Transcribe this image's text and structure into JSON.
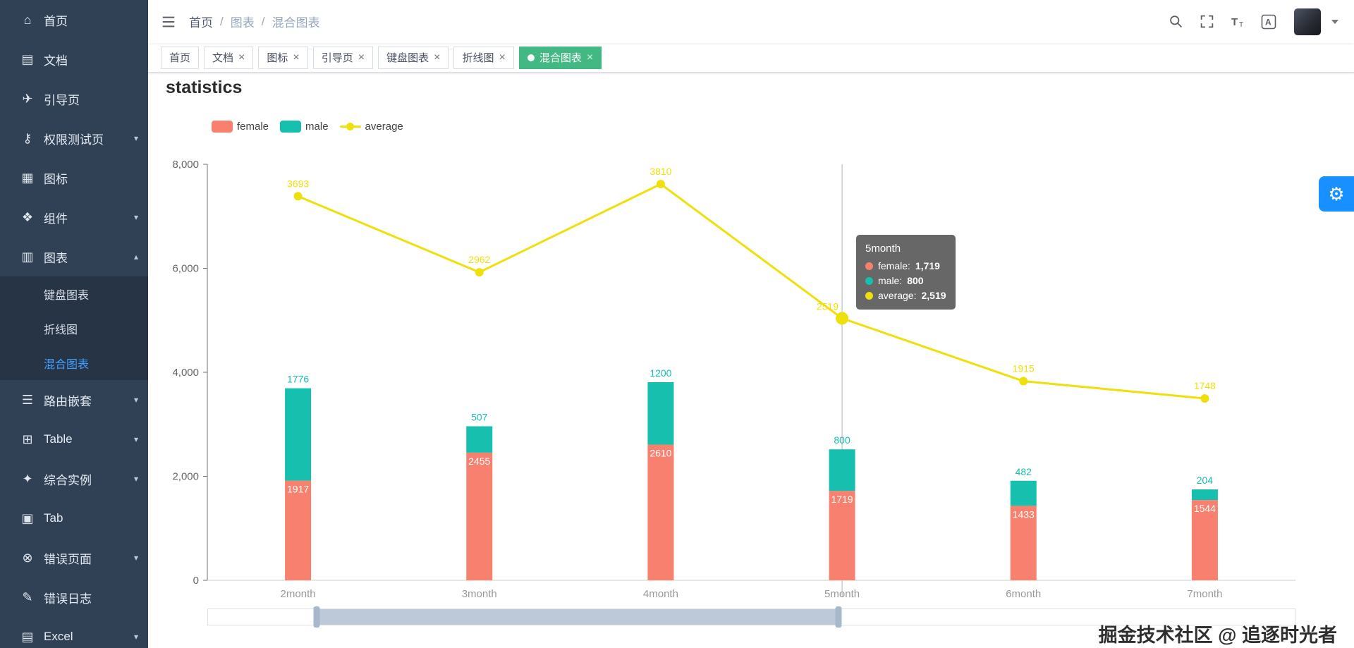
{
  "theme": {
    "sidebar_bg": "#304156",
    "submenu_bg": "#263445",
    "active_blue": "#409eff",
    "tag_green": "#42b983",
    "accent": "#1890ff"
  },
  "app": {
    "watermark": "掘金技术社区 @ 追逐时光者"
  },
  "page": {
    "title": "statistics"
  },
  "settings": {
    "glyph": "⚙",
    "icon": "gear-icon"
  },
  "sidebar": {
    "items": [
      {
        "name": "home",
        "label": "首页",
        "icon": "home-icon",
        "glyph": "⌂"
      },
      {
        "name": "docs",
        "label": "文档",
        "icon": "document-icon",
        "glyph": "▤"
      },
      {
        "name": "guide",
        "label": "引导页",
        "icon": "guide-icon",
        "glyph": "✈"
      },
      {
        "name": "permission",
        "label": "权限测试页",
        "icon": "lock-icon",
        "glyph": "⚷",
        "arrow": true
      },
      {
        "name": "icons",
        "label": "图标",
        "icon": "icons-icon",
        "glyph": "▦"
      },
      {
        "name": "components",
        "label": "组件",
        "icon": "components-icon",
        "glyph": "❖",
        "arrow": true
      },
      {
        "name": "charts",
        "label": "图表",
        "icon": "bar-chart-icon",
        "glyph": "▥",
        "arrow": true,
        "open": true,
        "children": [
          {
            "name": "keyboard-chart",
            "label": "键盘图表"
          },
          {
            "name": "line-chart",
            "label": "折线图"
          },
          {
            "name": "mixed-chart",
            "label": "混合图表",
            "active": true
          }
        ]
      },
      {
        "name": "nested-routes",
        "label": "路由嵌套",
        "icon": "list-icon",
        "glyph": "☰",
        "arrow": true
      },
      {
        "name": "table",
        "label": "Table",
        "icon": "table-icon",
        "glyph": "⊞",
        "arrow": true
      },
      {
        "name": "example",
        "label": "综合实例",
        "icon": "star-icon",
        "glyph": "✦",
        "arrow": true
      },
      {
        "name": "tab",
        "label": "Tab",
        "icon": "tab-icon",
        "glyph": "▣"
      },
      {
        "name": "error-pages",
        "label": "错误页面",
        "icon": "error-icon",
        "glyph": "⊗",
        "arrow": true
      },
      {
        "name": "error-log",
        "label": "错误日志",
        "icon": "log-icon",
        "glyph": "✎"
      },
      {
        "name": "excel",
        "label": "Excel",
        "icon": "excel-icon",
        "glyph": "▤",
        "arrow": true
      }
    ]
  },
  "navbar": {
    "breadcrumb": [
      "首页",
      "图表",
      "混合图表"
    ],
    "separator": "/",
    "icons": [
      "search-icon",
      "fullscreen-icon",
      "font-size-icon",
      "language-icon"
    ]
  },
  "tags": {
    "items": [
      {
        "label": "首页",
        "closable": false,
        "active": false
      },
      {
        "label": "文档",
        "closable": true,
        "active": false
      },
      {
        "label": "图标",
        "closable": true,
        "active": false
      },
      {
        "label": "引导页",
        "closable": true,
        "active": false
      },
      {
        "label": "键盘图表",
        "closable": true,
        "active": false
      },
      {
        "label": "折线图",
        "closable": true,
        "active": false
      },
      {
        "label": "混合图表",
        "closable": true,
        "active": true
      }
    ]
  },
  "chart_data": {
    "type": "bar+line",
    "title": "statistics",
    "categories": [
      "2month",
      "3month",
      "4month",
      "5month",
      "6month",
      "7month"
    ],
    "series": [
      {
        "name": "female",
        "type": "bar",
        "stack": true,
        "color": "#f8806f",
        "values": [
          1917,
          2455,
          2610,
          1719,
          1433,
          1544
        ]
      },
      {
        "name": "male",
        "type": "bar",
        "stack": true,
        "color": "#17c0ae",
        "values": [
          1776,
          507,
          1200,
          800,
          482,
          204
        ]
      },
      {
        "name": "average",
        "type": "line",
        "yAxis": "right",
        "color": "#efdf0a",
        "values": [
          3693,
          2962,
          3810,
          2519,
          1915,
          1748
        ]
      }
    ],
    "legend": [
      "female",
      "male",
      "average"
    ],
    "legend_position": "top-left",
    "grid": false,
    "ylim": [
      0,
      8000
    ],
    "y2lim": [
      0,
      4000
    ],
    "yticks": [
      {
        "v": 0,
        "label": "0"
      },
      {
        "v": 2000,
        "label": "2,000"
      },
      {
        "v": 4000,
        "label": "4,000"
      },
      {
        "v": 6000,
        "label": "6,000"
      },
      {
        "v": 8000,
        "label": "8,000"
      }
    ],
    "active_index": 3,
    "tooltip": {
      "title": "5month",
      "rows": [
        {
          "series": "female",
          "value": "1,719"
        },
        {
          "series": "male",
          "value": "800"
        },
        {
          "series": "average",
          "value": "2,519"
        }
      ]
    },
    "datazoom": {
      "start": 10,
      "end": 58
    }
  }
}
